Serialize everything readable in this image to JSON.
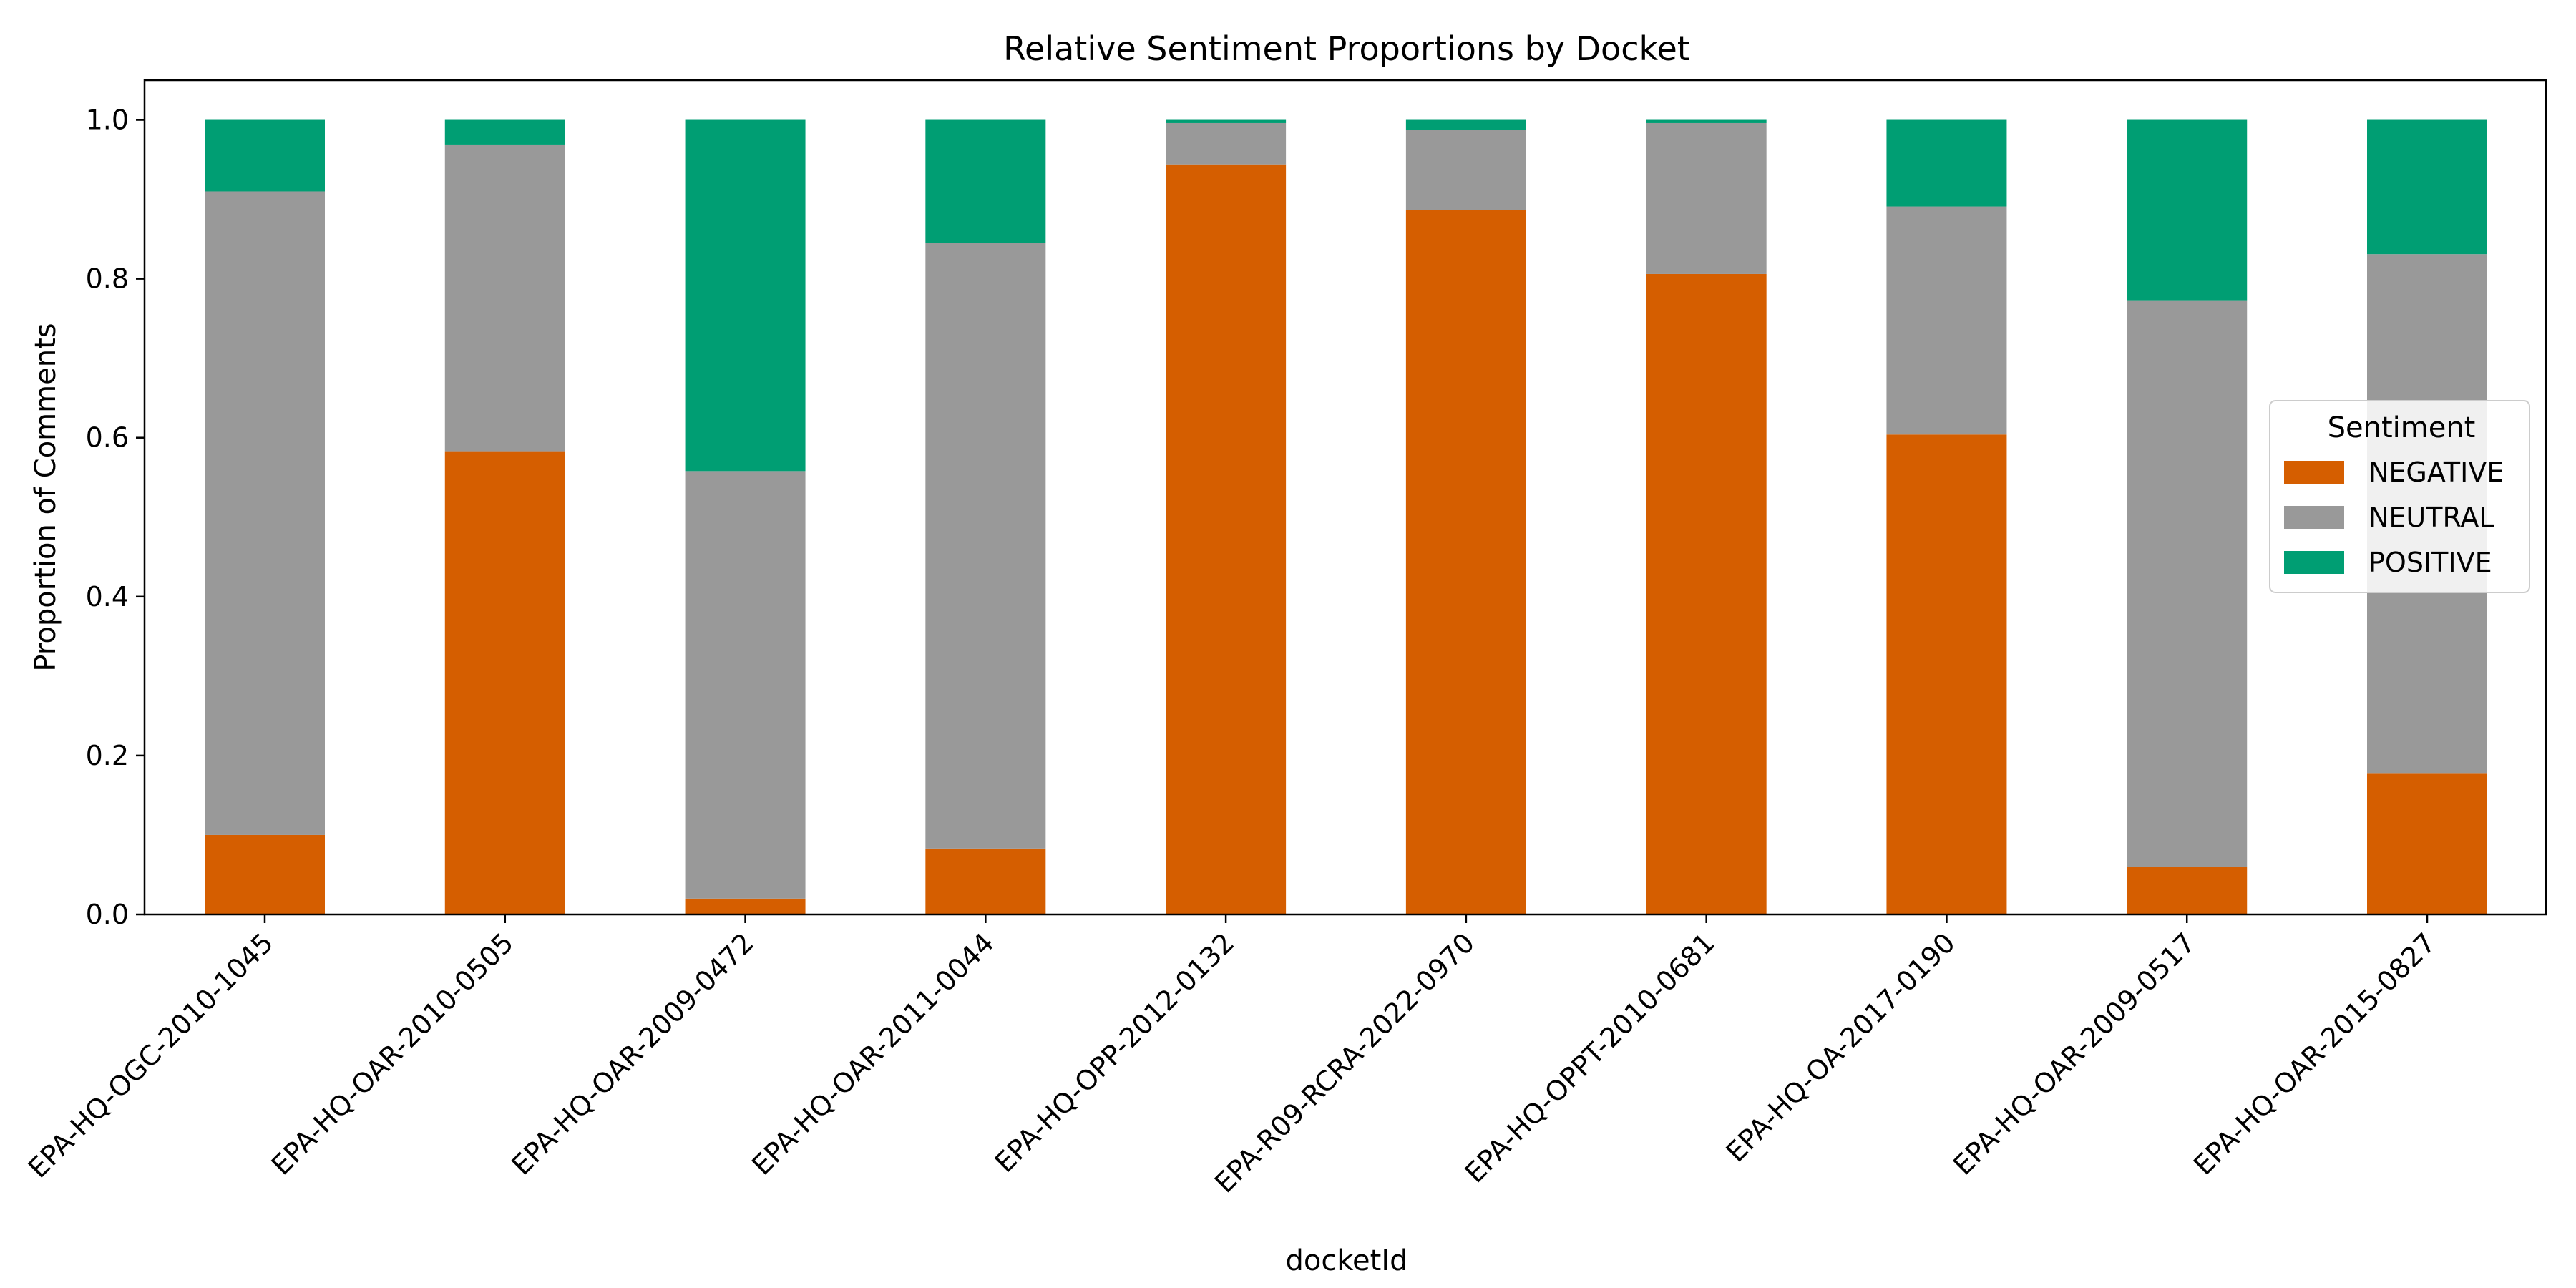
{
  "chart_data": {
    "type": "bar",
    "stacked": true,
    "title": "Relative Sentiment Proportions by Docket",
    "xlabel": "docketId",
    "ylabel": "Proportion of Comments",
    "ylim": [
      0,
      1.05
    ],
    "yticks": [
      0.0,
      0.2,
      0.4,
      0.6,
      0.8,
      1.0
    ],
    "ytick_labels": [
      "0.0",
      "0.2",
      "0.4",
      "0.6",
      "0.8",
      "1.0"
    ],
    "grid": false,
    "categories": [
      "EPA-HQ-OGC-2010-1045",
      "EPA-HQ-OAR-2010-0505",
      "EPA-HQ-OAR-2009-0472",
      "EPA-HQ-OAR-2011-0044",
      "EPA-HQ-OPP-2012-0132",
      "EPA-R09-RCRA-2022-0970",
      "EPA-HQ-OPPT-2010-0681",
      "EPA-HQ-OA-2017-0190",
      "EPA-HQ-OAR-2009-0517",
      "EPA-HQ-OAR-2015-0827"
    ],
    "series": [
      {
        "name": "NEGATIVE",
        "color": "#d55e00",
        "values": [
          0.1,
          0.583,
          0.02,
          0.083,
          0.944,
          0.887,
          0.806,
          0.604,
          0.06,
          0.178
        ]
      },
      {
        "name": "NEUTRAL",
        "color": "#999999",
        "values": [
          0.81,
          0.386,
          0.538,
          0.762,
          0.052,
          0.1,
          0.19,
          0.287,
          0.713,
          0.653
        ]
      },
      {
        "name": "POSITIVE",
        "color": "#009e73",
        "values": [
          0.09,
          0.031,
          0.442,
          0.155,
          0.004,
          0.013,
          0.004,
          0.109,
          0.227,
          0.169
        ]
      }
    ],
    "legend": {
      "title": "Sentiment",
      "placement": "center-right"
    }
  }
}
